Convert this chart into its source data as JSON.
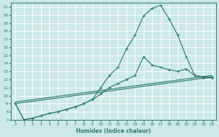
{
  "xlabel": "Humidex (Indice chaleur)",
  "bg_color": "#cde8e8",
  "grid_color": "#ffffff",
  "line_color": "#2e7d72",
  "xlim": [
    -0.5,
    23.5
  ],
  "ylim": [
    7,
    21.5
  ],
  "xticks": [
    0,
    1,
    2,
    3,
    4,
    5,
    6,
    7,
    8,
    9,
    10,
    11,
    12,
    13,
    14,
    15,
    16,
    17,
    18,
    19,
    20,
    21,
    22,
    23
  ],
  "yticks": [
    7,
    8,
    9,
    10,
    11,
    12,
    13,
    14,
    15,
    16,
    17,
    18,
    19,
    20,
    21
  ],
  "line1_x": [
    0,
    1,
    2,
    3,
    4,
    5,
    6,
    7,
    8,
    9,
    10,
    11,
    12,
    13,
    14,
    15,
    16,
    17,
    18,
    19,
    20,
    21,
    22,
    23
  ],
  "line1_y": [
    9,
    7,
    7.2,
    7.5,
    7.8,
    8.0,
    8.3,
    8.6,
    9.0,
    9.5,
    11.0,
    12.5,
    13.5,
    15.8,
    17.5,
    19.9,
    20.8,
    21.2,
    19.5,
    17.5,
    14.8,
    12.5,
    12.2,
    12.2
  ],
  "line2_x": [
    0,
    1,
    2,
    3,
    4,
    5,
    6,
    7,
    8,
    9,
    10,
    11,
    12,
    13,
    14,
    15,
    16,
    17,
    18,
    19,
    20,
    21,
    22,
    23
  ],
  "line2_y": [
    9,
    7,
    7.2,
    7.5,
    7.8,
    8.0,
    8.3,
    8.6,
    9.0,
    9.5,
    10.2,
    11.0,
    11.5,
    12.0,
    12.5,
    14.8,
    13.8,
    13.5,
    13.2,
    13.0,
    13.3,
    12.5,
    12.3,
    12.3
  ],
  "line3_x": [
    0,
    23
  ],
  "line3_y": [
    9,
    12.3
  ],
  "line4_x": [
    0,
    23
  ],
  "line4_y": [
    9,
    12.3
  ]
}
